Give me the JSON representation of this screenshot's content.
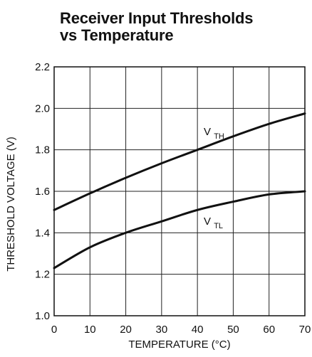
{
  "chart_data": {
    "type": "line",
    "title_lines": [
      "Receiver Input Thresholds",
      "vs Temperature"
    ],
    "xlabel": "TEMPERATURE (°C)",
    "ylabel": "THRESHOLD VOLTAGE (V)",
    "xlim": [
      0,
      70
    ],
    "ylim": [
      1.0,
      2.2
    ],
    "x_ticks": [
      0,
      10,
      20,
      30,
      40,
      50,
      60,
      70
    ],
    "y_ticks": [
      "1.0",
      "1.2",
      "1.4",
      "1.6",
      "1.8",
      "2.0",
      "2.2"
    ],
    "y_tick_values": [
      1.0,
      1.2,
      1.4,
      1.6,
      1.8,
      2.0,
      2.2
    ],
    "grid": true,
    "series": [
      {
        "name_main": "V",
        "name_sub": "TH",
        "line_color": "#111111",
        "x": [
          0,
          10,
          20,
          30,
          40,
          50,
          60,
          70
        ],
        "values": [
          1.51,
          1.59,
          1.665,
          1.735,
          1.8,
          1.865,
          1.925,
          1.975
        ]
      },
      {
        "name_main": "V",
        "name_sub": "TL",
        "line_color": "#111111",
        "x": [
          0,
          10,
          20,
          30,
          40,
          50,
          60,
          70
        ],
        "values": [
          1.23,
          1.33,
          1.4,
          1.455,
          1.51,
          1.55,
          1.585,
          1.6
        ]
      }
    ]
  }
}
